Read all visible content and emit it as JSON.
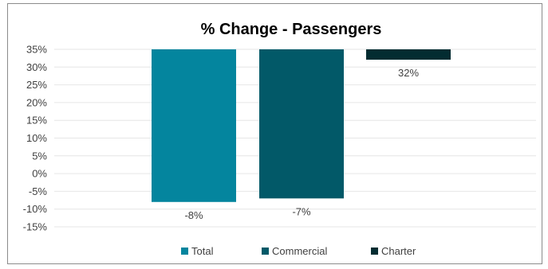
{
  "chart_data": {
    "type": "bar",
    "title": "% Change - Passengers",
    "xlabel": "",
    "ylabel": "",
    "ylim": [
      -15,
      35
    ],
    "y_ticks": [
      35,
      30,
      25,
      20,
      15,
      10,
      5,
      0,
      -5,
      -10,
      -15
    ],
    "y_tick_labels": [
      "35%",
      "30%",
      "25%",
      "20%",
      "15%",
      "10%",
      "5%",
      "0%",
      "-5%",
      "-10%",
      "-15%"
    ],
    "grid": true,
    "legend_position": "bottom",
    "series": [
      {
        "name": "Total",
        "value": -8,
        "data_label": "-8%",
        "color": "#04859E"
      },
      {
        "name": "Commercial",
        "value": -7,
        "data_label": "-7%",
        "color": "#025968"
      },
      {
        "name": "Charter",
        "value": 32,
        "data_label": "32%",
        "color": "#032C31"
      }
    ],
    "note": "Bars are drawn as in the original: Total and Commercial extend from the top of the axis downward to their value; Charter is a short bar near the top."
  }
}
